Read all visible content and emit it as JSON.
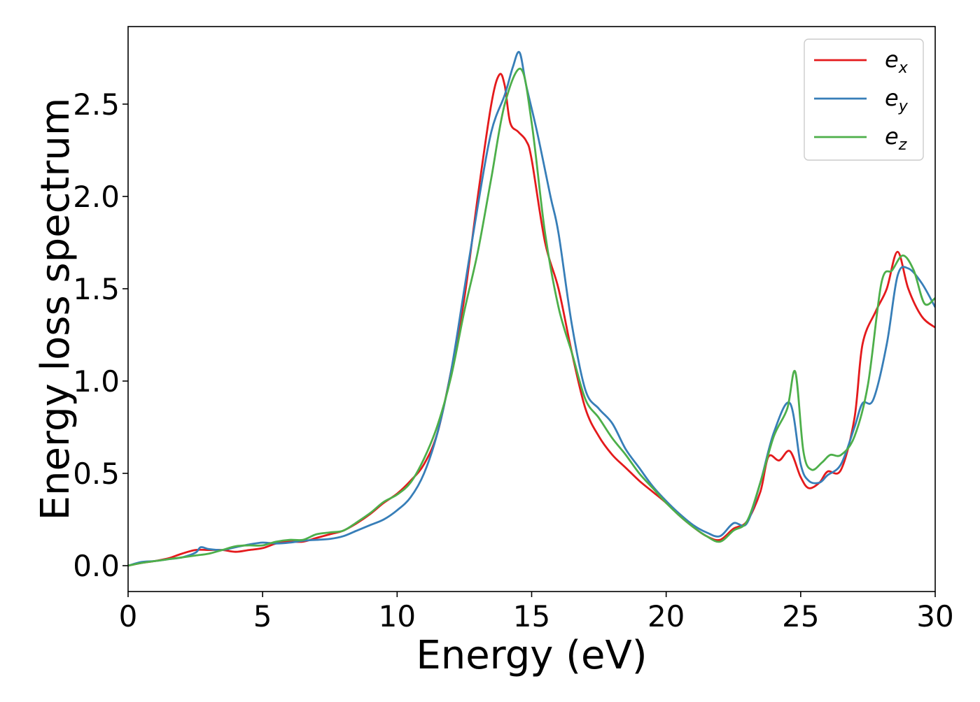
{
  "chart_data": {
    "type": "line",
    "title": "",
    "xlabel": "Energy (eV)",
    "ylabel": "Energy loss spectrum",
    "xlim": [
      0,
      30
    ],
    "ylim": [
      -0.14,
      2.92
    ],
    "xticks": [
      0,
      5,
      10,
      15,
      20,
      25,
      30
    ],
    "yticks": [
      0.0,
      0.5,
      1.0,
      1.5,
      2.0,
      2.5
    ],
    "xtick_labels": [
      "0",
      "5",
      "10",
      "15",
      "20",
      "25",
      "30"
    ],
    "ytick_labels": [
      "0.0",
      "0.5",
      "1.0",
      "1.5",
      "2.0",
      "2.5"
    ],
    "grid": false,
    "legend": "top-right",
    "series": [
      {
        "name": "e_x",
        "label_base": "e",
        "label_sub": "x",
        "color": "#e41a1c",
        "points": [
          [
            0,
            0
          ],
          [
            0.5,
            0.015
          ],
          [
            1,
            0.025
          ],
          [
            1.5,
            0.04
          ],
          [
            2,
            0.065
          ],
          [
            2.5,
            0.085
          ],
          [
            3,
            0.085
          ],
          [
            3.5,
            0.085
          ],
          [
            4,
            0.075
          ],
          [
            4.5,
            0.085
          ],
          [
            5,
            0.095
          ],
          [
            5.5,
            0.12
          ],
          [
            6,
            0.13
          ],
          [
            6.5,
            0.13
          ],
          [
            7,
            0.15
          ],
          [
            7.5,
            0.17
          ],
          [
            8,
            0.19
          ],
          [
            8.5,
            0.23
          ],
          [
            9,
            0.28
          ],
          [
            9.5,
            0.34
          ],
          [
            10,
            0.39
          ],
          [
            10.5,
            0.46
          ],
          [
            11,
            0.55
          ],
          [
            11.5,
            0.72
          ],
          [
            12,
            1.05
          ],
          [
            12.5,
            1.45
          ],
          [
            13,
            2.0
          ],
          [
            13.5,
            2.5
          ],
          [
            13.8,
            2.66
          ],
          [
            14,
            2.6
          ],
          [
            14.2,
            2.4
          ],
          [
            14.5,
            2.35
          ],
          [
            14.8,
            2.3
          ],
          [
            15,
            2.2
          ],
          [
            15.5,
            1.75
          ],
          [
            16,
            1.5
          ],
          [
            16.5,
            1.15
          ],
          [
            17,
            0.85
          ],
          [
            17.5,
            0.7
          ],
          [
            18,
            0.6
          ],
          [
            18.5,
            0.53
          ],
          [
            19,
            0.46
          ],
          [
            19.5,
            0.4
          ],
          [
            20,
            0.34
          ],
          [
            20.5,
            0.27
          ],
          [
            21,
            0.21
          ],
          [
            21.5,
            0.16
          ],
          [
            22,
            0.14
          ],
          [
            22.5,
            0.2
          ],
          [
            23,
            0.24
          ],
          [
            23.5,
            0.4
          ],
          [
            23.8,
            0.59
          ],
          [
            24.2,
            0.57
          ],
          [
            24.6,
            0.62
          ],
          [
            25,
            0.48
          ],
          [
            25.3,
            0.42
          ],
          [
            25.7,
            0.45
          ],
          [
            26,
            0.51
          ],
          [
            26.5,
            0.52
          ],
          [
            27,
            0.8
          ],
          [
            27.3,
            1.2
          ],
          [
            27.8,
            1.38
          ],
          [
            28.2,
            1.5
          ],
          [
            28.6,
            1.7
          ],
          [
            29,
            1.5
          ],
          [
            29.5,
            1.35
          ],
          [
            30,
            1.29
          ]
        ]
      },
      {
        "name": "e_y",
        "label_base": "e",
        "label_sub": "y",
        "color": "#377eb8",
        "points": [
          [
            0,
            0
          ],
          [
            0.5,
            0.02
          ],
          [
            1,
            0.025
          ],
          [
            1.5,
            0.035
          ],
          [
            2,
            0.045
          ],
          [
            2.5,
            0.07
          ],
          [
            2.7,
            0.1
          ],
          [
            3,
            0.09
          ],
          [
            3.5,
            0.085
          ],
          [
            4,
            0.1
          ],
          [
            4.5,
            0.115
          ],
          [
            5,
            0.125
          ],
          [
            5.5,
            0.12
          ],
          [
            6,
            0.125
          ],
          [
            6.5,
            0.135
          ],
          [
            7,
            0.14
          ],
          [
            7.5,
            0.145
          ],
          [
            8,
            0.16
          ],
          [
            8.5,
            0.19
          ],
          [
            9,
            0.22
          ],
          [
            9.5,
            0.25
          ],
          [
            10,
            0.3
          ],
          [
            10.5,
            0.37
          ],
          [
            11,
            0.5
          ],
          [
            11.5,
            0.72
          ],
          [
            12,
            1.05
          ],
          [
            12.5,
            1.5
          ],
          [
            13,
            1.95
          ],
          [
            13.5,
            2.35
          ],
          [
            14,
            2.55
          ],
          [
            14.3,
            2.7
          ],
          [
            14.55,
            2.78
          ],
          [
            14.8,
            2.6
          ],
          [
            15.2,
            2.35
          ],
          [
            15.7,
            2.0
          ],
          [
            16,
            1.8
          ],
          [
            16.5,
            1.3
          ],
          [
            17,
            0.95
          ],
          [
            17.5,
            0.85
          ],
          [
            18,
            0.77
          ],
          [
            18.5,
            0.63
          ],
          [
            19,
            0.53
          ],
          [
            19.5,
            0.43
          ],
          [
            20,
            0.35
          ],
          [
            20.5,
            0.28
          ],
          [
            21,
            0.22
          ],
          [
            21.5,
            0.18
          ],
          [
            22,
            0.16
          ],
          [
            22.5,
            0.23
          ],
          [
            23,
            0.23
          ],
          [
            23.5,
            0.45
          ],
          [
            24,
            0.72
          ],
          [
            24.6,
            0.88
          ],
          [
            25,
            0.55
          ],
          [
            25.3,
            0.46
          ],
          [
            25.7,
            0.45
          ],
          [
            26,
            0.49
          ],
          [
            26.5,
            0.55
          ],
          [
            27,
            0.75
          ],
          [
            27.3,
            0.88
          ],
          [
            27.7,
            0.9
          ],
          [
            28.2,
            1.2
          ],
          [
            28.6,
            1.57
          ],
          [
            29,
            1.61
          ],
          [
            29.5,
            1.53
          ],
          [
            30,
            1.4
          ]
        ]
      },
      {
        "name": "e_z",
        "label_base": "e",
        "label_sub": "z",
        "color": "#4daf4a",
        "points": [
          [
            0,
            0
          ],
          [
            0.5,
            0.015
          ],
          [
            1,
            0.025
          ],
          [
            1.5,
            0.035
          ],
          [
            2,
            0.045
          ],
          [
            2.5,
            0.055
          ],
          [
            3,
            0.065
          ],
          [
            3.5,
            0.085
          ],
          [
            4,
            0.105
          ],
          [
            4.5,
            0.11
          ],
          [
            5,
            0.11
          ],
          [
            5.5,
            0.13
          ],
          [
            6,
            0.14
          ],
          [
            6.5,
            0.14
          ],
          [
            7,
            0.17
          ],
          [
            7.5,
            0.18
          ],
          [
            8,
            0.19
          ],
          [
            8.5,
            0.235
          ],
          [
            9,
            0.285
          ],
          [
            9.5,
            0.345
          ],
          [
            10,
            0.385
          ],
          [
            10.5,
            0.45
          ],
          [
            11,
            0.58
          ],
          [
            11.5,
            0.76
          ],
          [
            12,
            1.02
          ],
          [
            12.5,
            1.38
          ],
          [
            13,
            1.7
          ],
          [
            13.5,
            2.1
          ],
          [
            14,
            2.5
          ],
          [
            14.6,
            2.69
          ],
          [
            15,
            2.4
          ],
          [
            15.5,
            1.8
          ],
          [
            16,
            1.4
          ],
          [
            16.5,
            1.15
          ],
          [
            17,
            0.9
          ],
          [
            17.5,
            0.8
          ],
          [
            18,
            0.69
          ],
          [
            18.5,
            0.6
          ],
          [
            19,
            0.5
          ],
          [
            19.5,
            0.42
          ],
          [
            20,
            0.34
          ],
          [
            20.5,
            0.27
          ],
          [
            21,
            0.21
          ],
          [
            21.5,
            0.16
          ],
          [
            22,
            0.13
          ],
          [
            22.5,
            0.19
          ],
          [
            23,
            0.24
          ],
          [
            23.5,
            0.45
          ],
          [
            24,
            0.7
          ],
          [
            24.5,
            0.85
          ],
          [
            24.8,
            1.05
          ],
          [
            25.1,
            0.62
          ],
          [
            25.4,
            0.52
          ],
          [
            25.8,
            0.56
          ],
          [
            26.1,
            0.6
          ],
          [
            26.5,
            0.6
          ],
          [
            27,
            0.7
          ],
          [
            27.5,
            0.98
          ],
          [
            28,
            1.53
          ],
          [
            28.4,
            1.6
          ],
          [
            28.8,
            1.68
          ],
          [
            29.2,
            1.6
          ],
          [
            29.6,
            1.42
          ],
          [
            30,
            1.45
          ]
        ]
      }
    ]
  }
}
